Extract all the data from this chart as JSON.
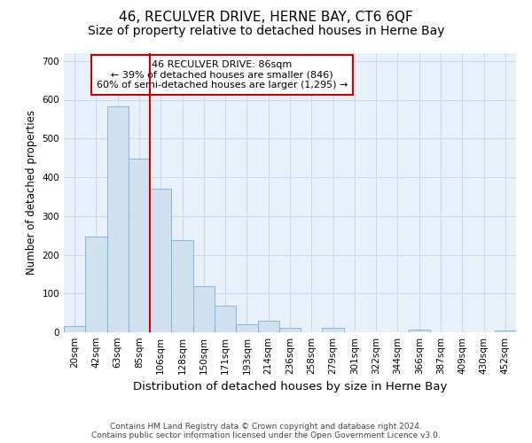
{
  "title": "46, RECULVER DRIVE, HERNE BAY, CT6 6QF",
  "subtitle": "Size of property relative to detached houses in Herne Bay",
  "xlabel": "Distribution of detached houses by size in Herne Bay",
  "ylabel": "Number of detached properties",
  "categories": [
    "20sqm",
    "42sqm",
    "63sqm",
    "85sqm",
    "106sqm",
    "128sqm",
    "150sqm",
    "171sqm",
    "193sqm",
    "214sqm",
    "236sqm",
    "258sqm",
    "279sqm",
    "301sqm",
    "322sqm",
    "344sqm",
    "366sqm",
    "387sqm",
    "409sqm",
    "430sqm",
    "452sqm"
  ],
  "values": [
    15,
    248,
    583,
    447,
    370,
    237,
    120,
    68,
    20,
    30,
    12,
    0,
    12,
    0,
    0,
    0,
    8,
    0,
    0,
    0,
    5
  ],
  "bar_color": "#cfe0f0",
  "bar_edge_color": "#7bafd4",
  "grid_color": "#c8d8ec",
  "background_color": "#e8f0fa",
  "annotation_box_text": "46 RECULVER DRIVE: 86sqm\n← 39% of detached houses are smaller (846)\n60% of semi-detached houses are larger (1,295) →",
  "annotation_box_color": "#ffffff",
  "annotation_box_edge_color": "#cc0000",
  "vline_color": "#cc0000",
  "ylim": [
    0,
    720
  ],
  "yticks": [
    0,
    100,
    200,
    300,
    400,
    500,
    600,
    700
  ],
  "footer_line1": "Contains HM Land Registry data © Crown copyright and database right 2024.",
  "footer_line2": "Contains public sector information licensed under the Open Government Licence v3.0.",
  "title_fontsize": 11,
  "subtitle_fontsize": 10,
  "xlabel_fontsize": 9.5,
  "ylabel_fontsize": 8.5,
  "tick_fontsize": 7.5,
  "annotation_fontsize": 8,
  "footer_fontsize": 6.5
}
